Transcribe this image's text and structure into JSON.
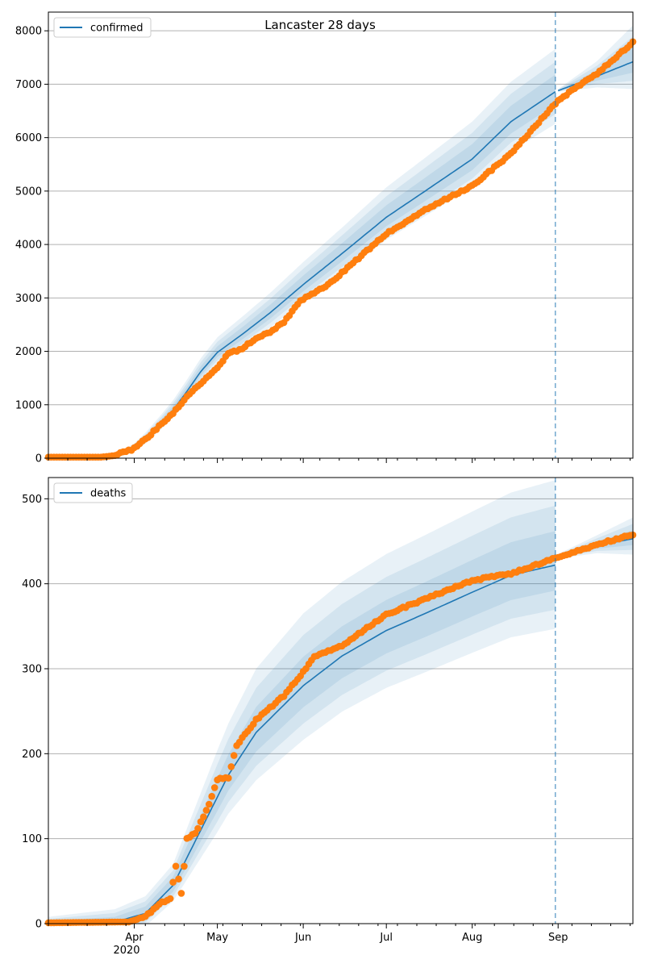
{
  "chart_data": [
    {
      "type": "line",
      "title": "Lancaster 28 days",
      "legend": {
        "label": "confirmed",
        "location": "top-left"
      },
      "xlim": [
        "2020-03-01",
        "2020-09-28"
      ],
      "ylim": [
        0,
        8350
      ],
      "yticks": [
        0,
        1000,
        2000,
        3000,
        4000,
        5000,
        6000,
        7000,
        8000
      ],
      "grid": "y",
      "forecast_start": "2020-08-31",
      "model_median": [
        [
          "2020-03-01",
          5
        ],
        [
          "2020-03-20",
          10
        ],
        [
          "2020-03-27",
          70
        ],
        [
          "2020-04-01",
          190
        ],
        [
          "2020-04-05",
          360
        ],
        [
          "2020-04-10",
          620
        ],
        [
          "2020-04-15",
          900
        ],
        [
          "2020-04-20",
          1250
        ],
        [
          "2020-04-25",
          1620
        ],
        [
          "2020-05-01",
          1980
        ],
        [
          "2020-05-10",
          2320
        ],
        [
          "2020-05-20",
          2720
        ],
        [
          "2020-06-01",
          3250
        ],
        [
          "2020-06-15",
          3830
        ],
        [
          "2020-07-01",
          4510
        ],
        [
          "2020-07-15",
          5000
        ],
        [
          "2020-08-01",
          5600
        ],
        [
          "2020-08-15",
          6300
        ],
        [
          "2020-08-31",
          6860
        ],
        [
          "2020-09-15",
          7150
        ],
        [
          "2020-09-28",
          7420
        ]
      ],
      "band_widths": [
        [
          "2020-03-01",
          0
        ],
        [
          "2020-03-25",
          40
        ],
        [
          "2020-04-10",
          150
        ],
        [
          "2020-04-25",
          250
        ],
        [
          "2020-05-10",
          330
        ],
        [
          "2020-06-01",
          420
        ],
        [
          "2020-07-01",
          560
        ],
        [
          "2020-08-01",
          700
        ],
        [
          "2020-08-31",
          800
        ],
        [
          "2020-09-01",
          30
        ],
        [
          "2020-09-15",
          280
        ],
        [
          "2020-09-28",
          680
        ]
      ],
      "observed": [
        [
          "2020-03-01",
          20
        ],
        [
          "2020-03-20",
          20
        ],
        [
          "2020-03-25",
          50
        ],
        [
          "2020-04-01",
          180
        ],
        [
          "2020-04-05",
          350
        ],
        [
          "2020-04-10",
          600
        ],
        [
          "2020-04-15",
          850
        ],
        [
          "2020-04-20",
          1150
        ],
        [
          "2020-04-25",
          1400
        ],
        [
          "2020-05-01",
          1700
        ],
        [
          "2020-05-05",
          1960
        ],
        [
          "2020-05-10",
          2050
        ],
        [
          "2020-05-15",
          2250
        ],
        [
          "2020-05-20",
          2350
        ],
        [
          "2020-05-25",
          2550
        ],
        [
          "2020-05-31",
          2950
        ],
        [
          "2020-06-10",
          3250
        ],
        [
          "2020-06-20",
          3700
        ],
        [
          "2020-07-01",
          4200
        ],
        [
          "2020-07-15",
          4650
        ],
        [
          "2020-08-01",
          5100
        ],
        [
          "2020-08-15",
          5700
        ],
        [
          "2020-09-01",
          6700
        ],
        [
          "2020-09-15",
          7200
        ],
        [
          "2020-09-28",
          7780
        ]
      ]
    },
    {
      "type": "line",
      "legend": {
        "label": "deaths",
        "location": "top-left"
      },
      "xlim": [
        "2020-03-01",
        "2020-09-28"
      ],
      "ylim": [
        0,
        525
      ],
      "yticks": [
        0,
        100,
        200,
        300,
        400,
        500
      ],
      "grid": "y",
      "forecast_start": "2020-08-31",
      "model_median": [
        [
          "2020-03-01",
          0
        ],
        [
          "2020-03-25",
          2
        ],
        [
          "2020-04-05",
          12
        ],
        [
          "2020-04-15",
          45
        ],
        [
          "2020-04-25",
          110
        ],
        [
          "2020-05-05",
          175
        ],
        [
          "2020-05-15",
          225
        ],
        [
          "2020-06-01",
          280
        ],
        [
          "2020-06-15",
          315
        ],
        [
          "2020-07-01",
          345
        ],
        [
          "2020-07-15",
          365
        ],
        [
          "2020-08-01",
          390
        ],
        [
          "2020-08-15",
          410
        ],
        [
          "2020-08-31",
          422
        ],
        [
          "2020-09-01",
          432
        ],
        [
          "2020-09-15",
          445
        ],
        [
          "2020-09-28",
          453
        ]
      ],
      "band_widths": [
        [
          "2020-03-01",
          8
        ],
        [
          "2020-03-25",
          15
        ],
        [
          "2020-04-15",
          25
        ],
        [
          "2020-05-01",
          55
        ],
        [
          "2020-05-15",
          75
        ],
        [
          "2020-06-01",
          85
        ],
        [
          "2020-07-01",
          90
        ],
        [
          "2020-08-01",
          95
        ],
        [
          "2020-08-31",
          100
        ],
        [
          "2020-09-01",
          3
        ],
        [
          "2020-09-15",
          12
        ],
        [
          "2020-09-28",
          25
        ]
      ],
      "observed": [
        [
          "2020-03-01",
          1
        ],
        [
          "2020-03-30",
          2
        ],
        [
          "2020-04-05",
          8
        ],
        [
          "2020-04-10",
          23
        ],
        [
          "2020-04-14",
          30
        ],
        [
          "2020-04-16",
          68
        ],
        [
          "2020-04-18",
          35
        ],
        [
          "2020-04-20",
          100
        ],
        [
          "2020-04-23",
          106
        ],
        [
          "2020-04-28",
          140
        ],
        [
          "2020-05-01",
          170
        ],
        [
          "2020-05-05",
          172
        ],
        [
          "2020-05-08",
          210
        ],
        [
          "2020-05-15",
          240
        ],
        [
          "2020-05-25",
          268
        ],
        [
          "2020-06-01",
          296
        ],
        [
          "2020-06-05",
          315
        ],
        [
          "2020-06-15",
          327
        ],
        [
          "2020-07-01",
          364
        ],
        [
          "2020-07-15",
          382
        ],
        [
          "2020-08-01",
          404
        ],
        [
          "2020-08-15",
          412
        ],
        [
          "2020-08-31",
          430
        ],
        [
          "2020-09-15",
          446
        ],
        [
          "2020-09-28",
          458
        ]
      ]
    }
  ],
  "x_axis": {
    "ticks": [
      {
        "date": "2020-04-01",
        "label": "Apr"
      },
      {
        "date": "2020-05-01",
        "label": "May"
      },
      {
        "date": "2020-06-01",
        "label": "Jun"
      },
      {
        "date": "2020-07-01",
        "label": "Jul"
      },
      {
        "date": "2020-08-01",
        "label": "Aug"
      },
      {
        "date": "2020-09-01",
        "label": "Sep"
      }
    ],
    "year_label": "2020"
  },
  "colors": {
    "model_line": "#1f77b4",
    "band": "#1f77b4",
    "observed": "#ff7f0e",
    "grid": "#b0b0b0"
  }
}
